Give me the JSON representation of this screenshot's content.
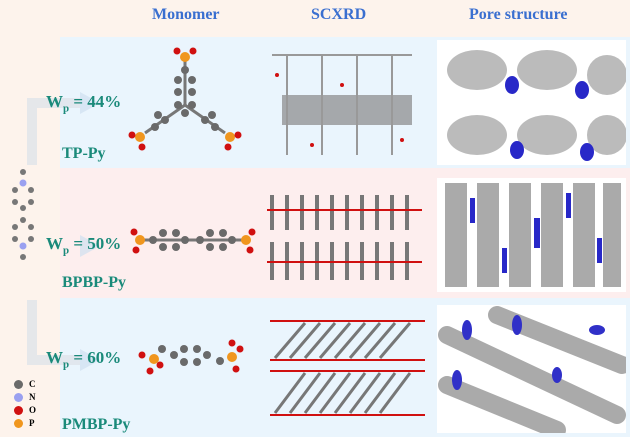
{
  "headers": {
    "monomer": "Monomer",
    "scxrd": "SCXRD",
    "pore": "Pore structure"
  },
  "rows": [
    {
      "wp_label": "W",
      "wp_sub": "p",
      "wp_value": " = 44%",
      "name": "TP-Py",
      "bg": "#eaf5fd"
    },
    {
      "wp_label": "W",
      "wp_sub": "p",
      "wp_value": " = 50%",
      "name": "BPBP-Py",
      "bg": "#fdeeee"
    },
    {
      "wp_label": "W",
      "wp_sub": "p",
      "wp_value": " = 60%",
      "name": "PMBP-Py",
      "bg": "#eaf5fd"
    }
  ],
  "legend": [
    {
      "label": "C",
      "color": "#6a6a6a"
    },
    {
      "label": "N",
      "color": "#9aa0f0"
    },
    {
      "label": "O",
      "color": "#d01010"
    },
    {
      "label": "P",
      "color": "#f0961e"
    }
  ]
}
